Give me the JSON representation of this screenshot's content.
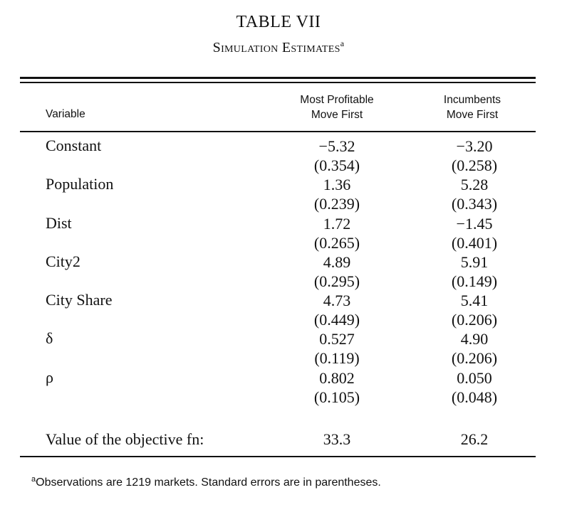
{
  "title": "TABLE VII",
  "subtitle": "Simulation Estimates",
  "subtitle_note_marker": "a",
  "headers": {
    "variable": "Variable",
    "col1_line1": "Most Profitable",
    "col1_line2": "Move First",
    "col2_line1": "Incumbents",
    "col2_line2": "Move First"
  },
  "rows": [
    {
      "variable": "Constant",
      "est1": "−5.32",
      "se1": "(0.354)",
      "est2": "−3.20",
      "se2": "(0.258)"
    },
    {
      "variable": "Population",
      "est1": "1.36",
      "se1": "(0.239)",
      "est2": "5.28",
      "se2": "(0.343)"
    },
    {
      "variable": "Dist",
      "est1": "1.72",
      "se1": "(0.265)",
      "est2": "−1.45",
      "se2": "(0.401)"
    },
    {
      "variable": "City2",
      "est1": "4.89",
      "se1": "(0.295)",
      "est2": "5.91",
      "se2": "(0.149)"
    },
    {
      "variable": "City Share",
      "est1": "4.73",
      "se1": "(0.449)",
      "est2": "5.41",
      "se2": "(0.206)"
    },
    {
      "variable": "δ",
      "est1": "0.527",
      "se1": "(0.119)",
      "est2": "4.90",
      "se2": "(0.206)"
    },
    {
      "variable": "ρ",
      "est1": "0.802",
      "se1": "(0.105)",
      "est2": "0.050",
      "se2": "(0.048)"
    }
  ],
  "objective": {
    "label": "Value of the objective fn:",
    "col1": "33.3",
    "col2": "26.2"
  },
  "footnote": {
    "marker": "a",
    "text": "Observations are 1219 markets. Standard errors are in parentheses."
  }
}
